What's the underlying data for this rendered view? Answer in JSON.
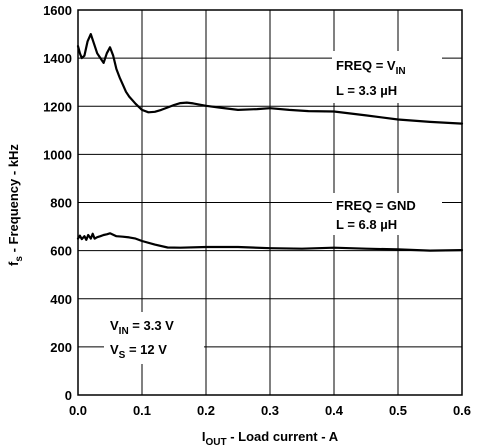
{
  "chart_data": {
    "type": "line",
    "xlabel_main": "I",
    "xlabel_sub": "OUT",
    "xlabel_rest": " - Load current - A",
    "ylabel_main": "f",
    "ylabel_sub": "s",
    "ylabel_rest": " - Frequency - kHz",
    "xlim": [
      0,
      0.6
    ],
    "ylim": [
      0,
      1600
    ],
    "xticks": [
      "0.0",
      "0.1",
      "0.2",
      "0.3",
      "0.4",
      "0.5",
      "0.6"
    ],
    "yticks": [
      "0",
      "200",
      "400",
      "600",
      "800",
      "1000",
      "1200",
      "1400",
      "1600"
    ],
    "grid": true,
    "series": [
      {
        "x": [
          0.0,
          0.003,
          0.006,
          0.01,
          0.015,
          0.02,
          0.025,
          0.03,
          0.035,
          0.04,
          0.045,
          0.05,
          0.055,
          0.06,
          0.065,
          0.07,
          0.075,
          0.08,
          0.085,
          0.09,
          0.1,
          0.11,
          0.12,
          0.13,
          0.14,
          0.15,
          0.16,
          0.17,
          0.18,
          0.2,
          0.22,
          0.25,
          0.28,
          0.3,
          0.33,
          0.36,
          0.4,
          0.45,
          0.5,
          0.55,
          0.6
        ],
        "values": [
          1450,
          1420,
          1400,
          1410,
          1470,
          1500,
          1460,
          1420,
          1400,
          1380,
          1420,
          1445,
          1410,
          1355,
          1320,
          1290,
          1260,
          1240,
          1225,
          1210,
          1185,
          1175,
          1177,
          1185,
          1195,
          1205,
          1213,
          1215,
          1212,
          1202,
          1195,
          1185,
          1188,
          1192,
          1185,
          1180,
          1178,
          1162,
          1145,
          1135,
          1128
        ]
      },
      {
        "x": [
          0.0,
          0.003,
          0.006,
          0.01,
          0.013,
          0.016,
          0.02,
          0.023,
          0.026,
          0.03,
          0.035,
          0.04,
          0.045,
          0.05,
          0.055,
          0.06,
          0.07,
          0.08,
          0.09,
          0.1,
          0.12,
          0.14,
          0.16,
          0.2,
          0.25,
          0.3,
          0.35,
          0.4,
          0.45,
          0.5,
          0.55,
          0.6
        ],
        "values": [
          650,
          662,
          648,
          660,
          645,
          665,
          650,
          670,
          650,
          656,
          660,
          665,
          668,
          672,
          666,
          660,
          658,
          655,
          650,
          640,
          625,
          613,
          612,
          615,
          615,
          610,
          608,
          612,
          608,
          605,
          600,
          602
        ]
      }
    ],
    "annotations": [
      {
        "text_main": "FREQ = V",
        "text_sub": "IN"
      },
      {
        "text_main": "L = 3.3 µH"
      },
      {
        "text_main": "FREQ = GND"
      },
      {
        "text_main": "L = 6.8 µH"
      },
      {
        "text_main": "V",
        "text_sub": "IN",
        "text_rest": " = 3.3 V"
      },
      {
        "text_main": "V",
        "text_sub": "S",
        "text_rest": " = 12 V"
      }
    ]
  }
}
